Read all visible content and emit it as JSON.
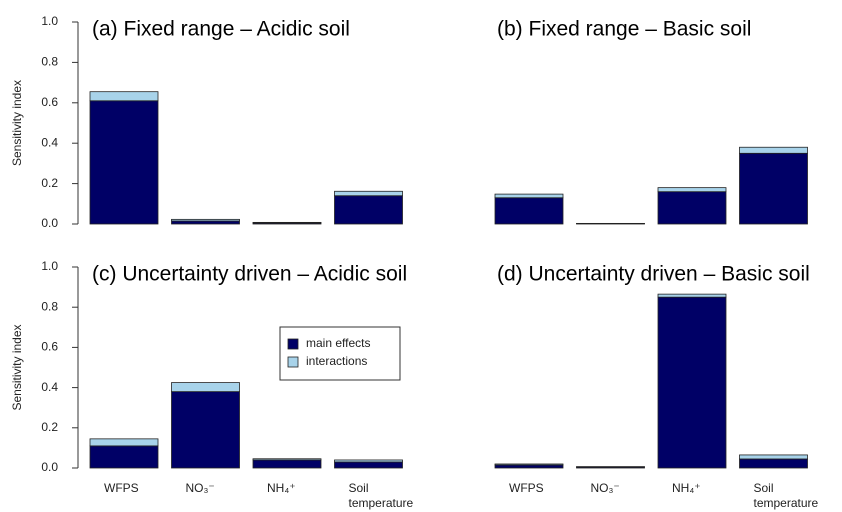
{
  "chart_data": [
    {
      "type": "bar",
      "title": "(a) Fixed range – Acidic soil",
      "ylabel": "Sensitivity index",
      "categories": [
        null,
        null,
        null,
        null
      ],
      "series": [
        {
          "color": "#000066",
          "values": [
            0.61,
            0.015,
            0.005,
            0.14
          ]
        },
        {
          "color": "#a8d3ea",
          "values": [
            0.045,
            0.008,
            0.003,
            0.022
          ]
        }
      ],
      "ylim": [
        0,
        1
      ],
      "yticks": [
        {
          "value": 0,
          "label": "0.0"
        },
        0.2,
        0.4,
        0.6,
        0.8,
        {
          "value": 1,
          "label": "1.0"
        }
      ]
    },
    {
      "type": "bar",
      "title": "(b) Fixed range – Basic soil",
      "categories": [
        null,
        null,
        null,
        null
      ],
      "series": [
        {
          "color": "#000066",
          "values": [
            0.13,
            0.002,
            0.16,
            0.35
          ]
        },
        {
          "color": "#a8d3ea",
          "values": [
            0.018,
            0.001,
            0.02,
            0.03
          ]
        }
      ],
      "ylim": [
        0,
        1
      ]
    },
    {
      "type": "bar",
      "title": "(c) Uncertainty driven – Acidic soil",
      "ylabel": "Sensitivity index",
      "categories": [
        "WFPS",
        "NO₃⁻",
        "NH₄⁺",
        "Soil temperature"
      ],
      "series": [
        {
          "name": "main effects",
          "color": "#000066",
          "values": [
            0.11,
            0.38,
            0.04,
            0.03
          ]
        },
        {
          "name": "interactions",
          "color": "#a8d3ea",
          "values": [
            0.035,
            0.045,
            0.006,
            0.01
          ]
        }
      ],
      "ylim": [
        0,
        1
      ],
      "yticks": [
        {
          "value": 0,
          "label": "0.0"
        },
        0.2,
        0.4,
        0.6,
        0.8,
        {
          "value": 1,
          "label": "1.0"
        }
      ]
    },
    {
      "type": "bar",
      "title": "(d) Uncertainty driven – Basic soil",
      "categories": [
        "WFPS",
        "NO₃⁻",
        "NH₄⁺",
        "Soil temperature"
      ],
      "series": [
        {
          "color": "#000066",
          "values": [
            0.015,
            0.005,
            0.85,
            0.045
          ]
        },
        {
          "color": "#a8d3ea",
          "values": [
            0.005,
            0.002,
            0.015,
            0.02
          ]
        }
      ],
      "ylim": [
        0,
        1
      ]
    }
  ]
}
